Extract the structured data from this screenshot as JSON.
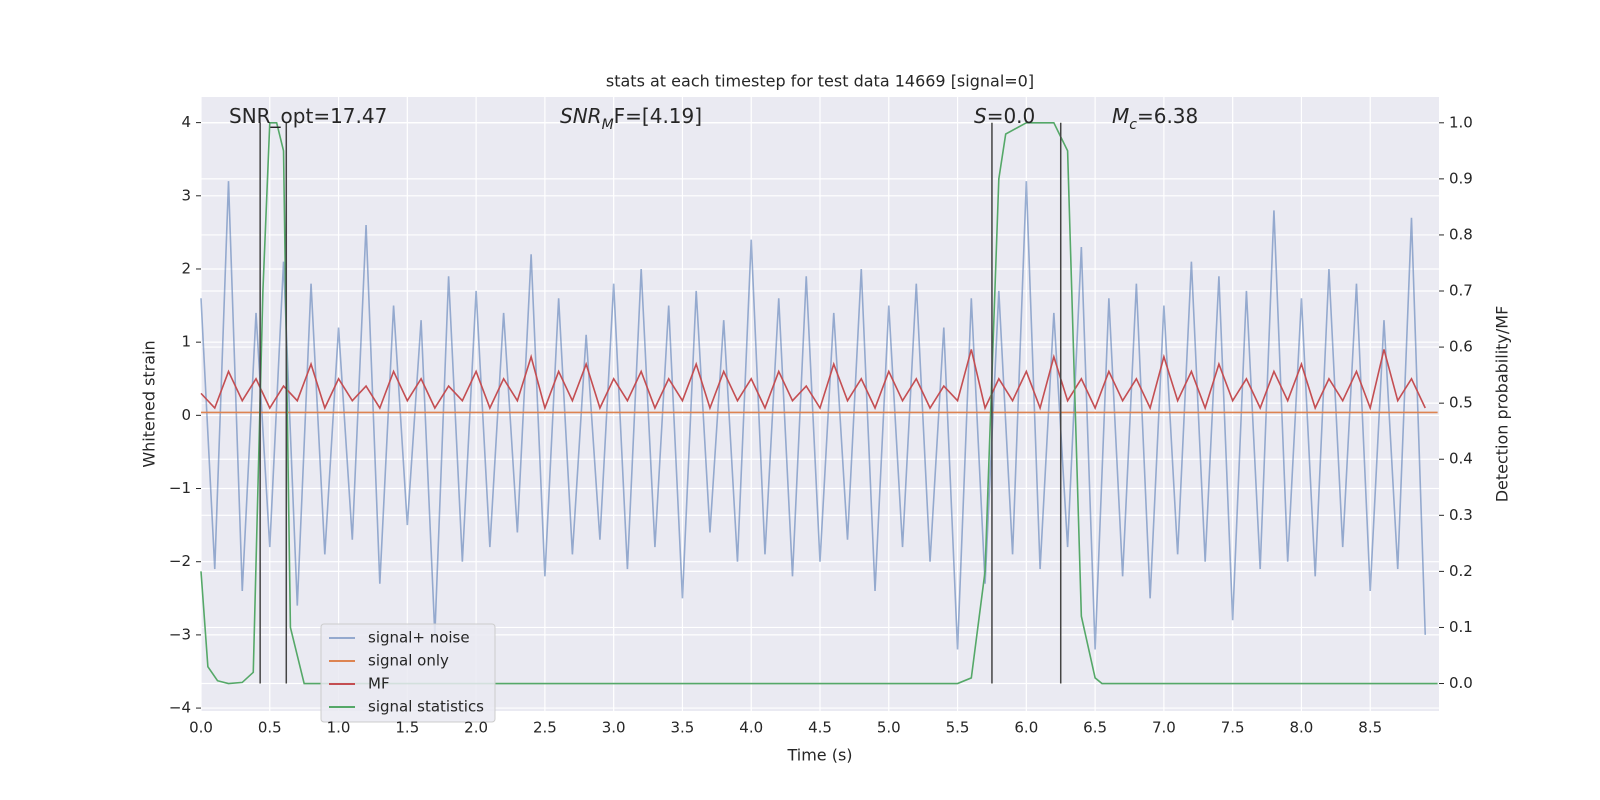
{
  "chart_data": {
    "type": "line",
    "title": "stats at each timestep for test data 14669 [signal=0]",
    "xlabel": "Time (s)",
    "ylabel": "Whitened strain",
    "y2label": "Detection probability/MF",
    "annotations": [
      {
        "main": "SNR_opt=17.47"
      },
      {
        "main": "SNR",
        "sub": "M",
        "rest": "F=[4.19]"
      },
      {
        "main": "S",
        "rest": "=0.0"
      },
      {
        "main": "M",
        "sub": "c",
        "rest": "=6.38"
      }
    ],
    "xlim": [
      0,
      9.0
    ],
    "ylim": [
      -4.04,
      4.35
    ],
    "y2lim": [
      -0.049,
      1.046
    ],
    "xticks": [
      {
        "value": 0,
        "label": "0.0"
      },
      0.5,
      {
        "value": 1,
        "label": "1.0"
      },
      1.5,
      {
        "value": 2,
        "label": "2.0"
      },
      2.5,
      {
        "value": 3,
        "label": "3.0"
      },
      3.5,
      {
        "value": 4,
        "label": "4.0"
      },
      4.5,
      {
        "value": 5,
        "label": "5.0"
      },
      5.5,
      {
        "value": 6,
        "label": "6.0"
      },
      6.5,
      {
        "value": 7,
        "label": "7.0"
      },
      7.5,
      {
        "value": 8,
        "label": "8.0"
      },
      8.5
    ],
    "yticks": [
      {
        "value": -4,
        "label": "−4"
      },
      {
        "value": -3,
        "label": "−3"
      },
      {
        "value": -2,
        "label": "−2"
      },
      {
        "value": -1,
        "label": "−1"
      },
      0,
      1,
      2,
      3,
      4
    ],
    "y2ticks": [
      {
        "value": 0,
        "label": "0.0"
      },
      0.1,
      0.2,
      0.3,
      0.4,
      0.5,
      0.6,
      0.7,
      0.8,
      0.9,
      {
        "value": 1,
        "label": "1.0"
      }
    ],
    "grid": true,
    "legend": "lower left",
    "x": [
      0,
      0.1,
      0.2,
      0.3,
      0.4,
      0.5,
      0.6,
      0.7,
      0.8,
      0.9,
      1,
      1.1,
      1.2,
      1.3,
      1.4,
      1.5,
      1.6,
      1.7,
      1.8,
      1.9,
      2,
      2.1,
      2.2,
      2.3,
      2.4,
      2.5,
      2.6,
      2.7,
      2.8,
      2.9,
      3,
      3.1,
      3.2,
      3.3,
      3.4,
      3.5,
      3.6,
      3.7,
      3.8,
      3.9,
      4,
      4.1,
      4.2,
      4.3,
      4.4,
      4.5,
      4.6,
      4.7,
      4.8,
      4.9,
      5,
      5.1,
      5.2,
      5.3,
      5.4,
      5.5,
      5.6,
      5.7,
      5.8,
      5.9,
      6,
      6.1,
      6.2,
      6.3,
      6.4,
      6.5,
      6.6,
      6.7,
      6.8,
      6.9,
      7,
      7.1,
      7.2,
      7.3,
      7.4,
      7.5,
      7.6,
      7.7,
      7.8,
      7.9,
      8,
      8.1,
      8.2,
      8.3,
      8.4,
      8.5,
      8.6,
      8.7,
      8.8,
      8.9
    ],
    "series": [
      {
        "name": "signal+ noise",
        "color": "#4c72b0",
        "values": [
          1.6,
          -2.1,
          3.2,
          -2.4,
          1.4,
          -1.8,
          2.1,
          -2.6,
          1.8,
          -1.9,
          1.2,
          -1.7,
          2.6,
          -2.3,
          1.5,
          -1.5,
          1.3,
          -3.0,
          1.9,
          -2.0,
          1.7,
          -1.8,
          1.4,
          -1.6,
          2.2,
          -2.2,
          1.6,
          -1.9,
          1.1,
          -1.7,
          1.8,
          -2.1,
          2.0,
          -1.8,
          1.5,
          -2.5,
          1.7,
          -1.6,
          1.3,
          -2.0,
          2.4,
          -1.9,
          1.6,
          -2.2,
          1.9,
          -2.0,
          1.4,
          -1.7,
          2.0,
          -2.4,
          1.5,
          -1.8,
          1.8,
          -2.0,
          1.2,
          -3.2,
          1.6,
          -2.3,
          1.7,
          -1.9,
          3.2,
          -2.1,
          1.4,
          -1.8,
          2.3,
          -3.2,
          1.6,
          -2.2,
          1.8,
          -2.5,
          1.5,
          -1.9,
          2.1,
          -2.0,
          1.9,
          -2.8,
          1.7,
          -2.1,
          2.8,
          -2.0,
          1.6,
          -2.2,
          2.0,
          -1.8,
          1.8,
          -2.4,
          1.3,
          -2.1,
          2.7,
          -3.0
        ]
      },
      {
        "name": "signal only",
        "color": "#dd8452",
        "x": [
          0,
          8.99
        ],
        "values": [
          0.04,
          0.04
        ]
      },
      {
        "name": "MF",
        "color": "#c44e52",
        "values": [
          0.3,
          0.1,
          0.6,
          0.2,
          0.5,
          0.1,
          0.4,
          0.2,
          0.7,
          0.1,
          0.5,
          0.2,
          0.4,
          0.1,
          0.6,
          0.2,
          0.5,
          0.1,
          0.4,
          0.2,
          0.6,
          0.1,
          0.5,
          0.2,
          0.8,
          0.1,
          0.6,
          0.2,
          0.7,
          0.1,
          0.5,
          0.2,
          0.6,
          0.1,
          0.5,
          0.2,
          0.7,
          0.1,
          0.6,
          0.2,
          0.5,
          0.1,
          0.6,
          0.2,
          0.4,
          0.1,
          0.7,
          0.2,
          0.5,
          0.1,
          0.6,
          0.2,
          0.5,
          0.1,
          0.4,
          0.2,
          0.9,
          0.1,
          0.5,
          0.2,
          0.6,
          0.1,
          0.8,
          0.2,
          0.5,
          0.1,
          0.6,
          0.2,
          0.5,
          0.1,
          0.8,
          0.2,
          0.6,
          0.1,
          0.7,
          0.2,
          0.5,
          0.1,
          0.6,
          0.2,
          0.7,
          0.1,
          0.5,
          0.2,
          0.6,
          0.1,
          0.9,
          0.2,
          0.5,
          0.1
        ]
      },
      {
        "name": "signal statistics",
        "color": "#55a868",
        "axis": "y2",
        "x": [
          0,
          0.05,
          0.12,
          0.2,
          0.3,
          0.38,
          0.45,
          0.5,
          0.55,
          0.6,
          0.65,
          0.75,
          1.0,
          5.5,
          5.6,
          5.7,
          5.8,
          5.85,
          6.0,
          6.2,
          6.3,
          6.4,
          6.5,
          6.55,
          8.99
        ],
        "values": [
          0.2,
          0.03,
          0.005,
          0,
          0.002,
          0.02,
          0.7,
          1.0,
          1.0,
          0.95,
          0.1,
          0,
          0,
          0,
          0.01,
          0.2,
          0.9,
          0.98,
          1.0,
          1.0,
          0.95,
          0.12,
          0.01,
          0,
          0
        ]
      }
    ],
    "vlines": {
      "color": "#444444",
      "x": [
        0.43,
        0.62,
        5.75,
        6.25
      ],
      "y2": [
        0,
        1
      ]
    }
  }
}
